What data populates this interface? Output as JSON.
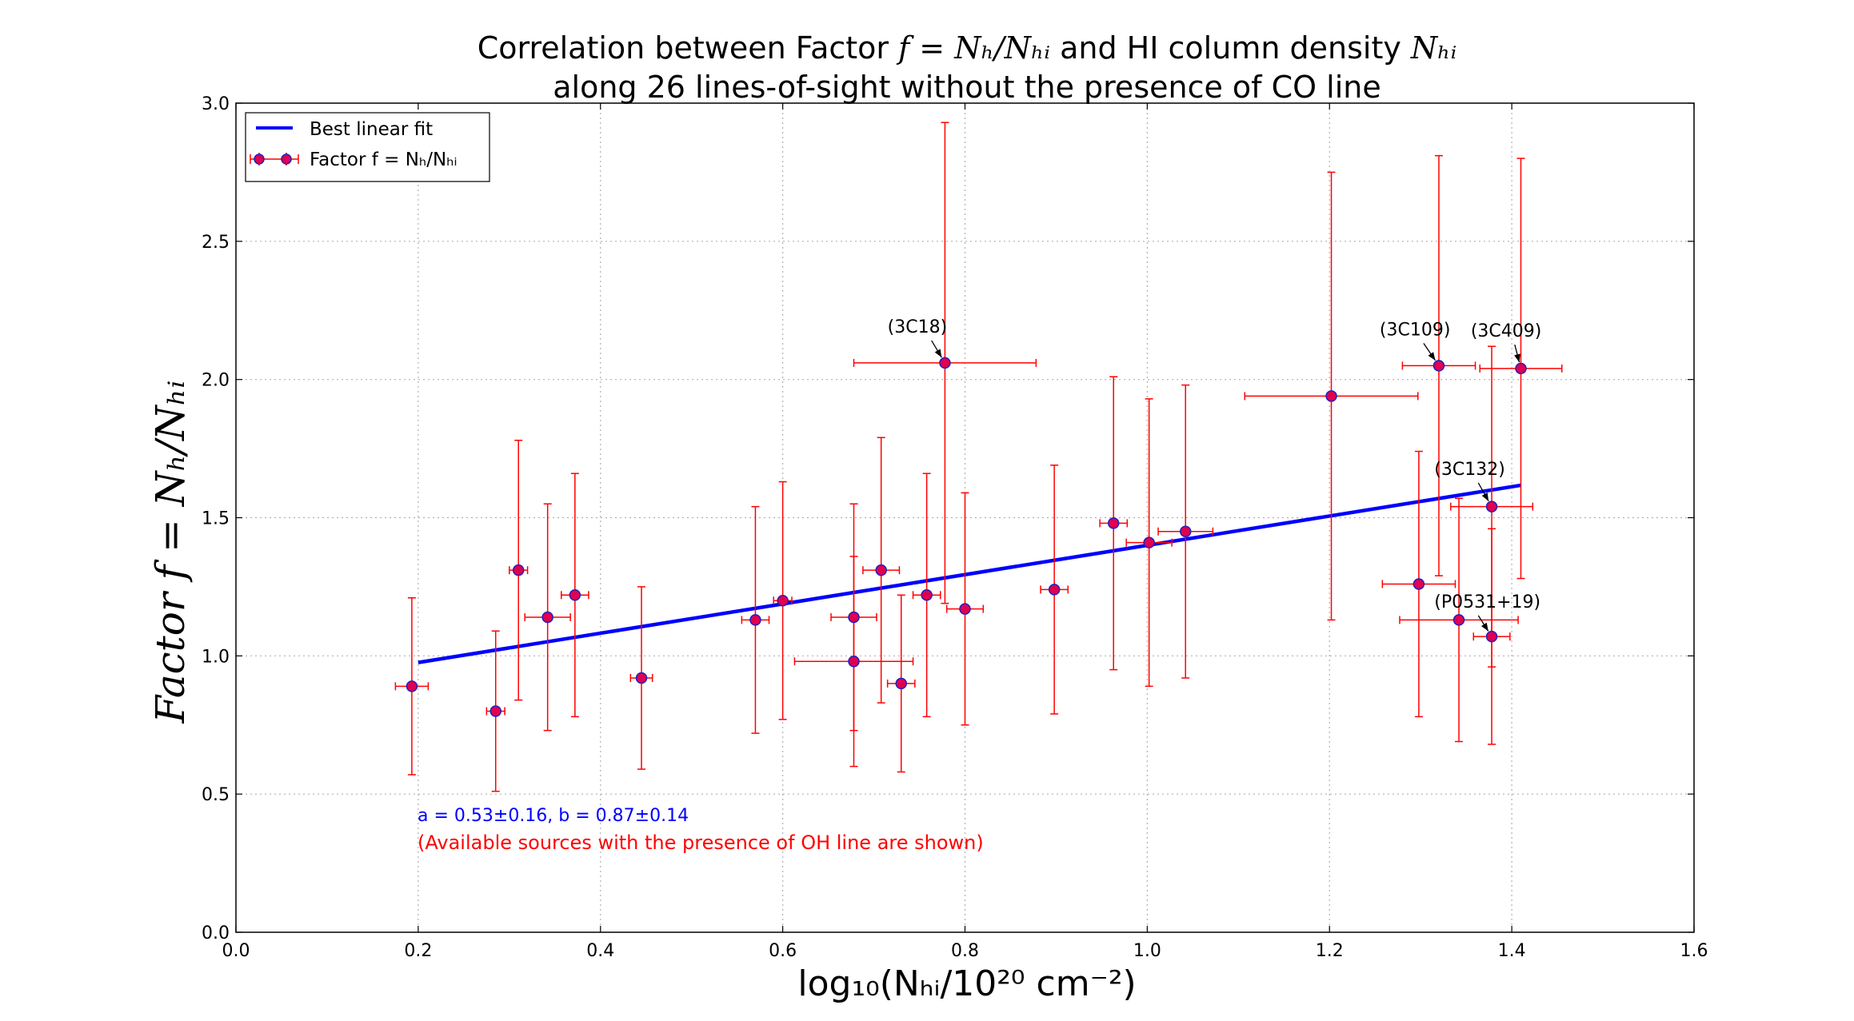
{
  "chart_data": {
    "type": "scatter",
    "title_line1_prefix": "Correlation between Factor ",
    "title_line1_math": "f = Nₕ/Nₕᵢ",
    "title_line1_mid": " and HI column density ",
    "title_line1_math2": "Nₕᵢ",
    "title_line2": "along 26 lines-of-sight without the presence of CO line",
    "xlabel": "log₁₀(Nₕᵢ/10²⁰ cm⁻²)",
    "ylabel": "Factor f = Nₕ/Nₕᵢ",
    "xlim": [
      0.0,
      1.6
    ],
    "ylim": [
      0.0,
      3.0
    ],
    "xticks": [
      "0.0",
      "0.2",
      "0.4",
      "0.6",
      "0.8",
      "1.0",
      "1.2",
      "1.4",
      "1.6"
    ],
    "yticks": [
      "0.0",
      "0.5",
      "1.0",
      "1.5",
      "2.0",
      "2.5",
      "3.0"
    ],
    "grid": true,
    "legend_position": "top-left",
    "legend": [
      {
        "label": "Best linear fit",
        "kind": "line",
        "color": "#0000ff"
      },
      {
        "label": "Factor f = Nₕ/Nₕᵢ",
        "kind": "errorbar",
        "color": "#ff0000",
        "marker_face": "#e0004f",
        "marker_edge": "#2020c0"
      }
    ],
    "fit": {
      "slope": 0.53,
      "intercept": 0.87,
      "x_range": [
        0.2,
        1.41
      ],
      "color": "#0000ff"
    },
    "fit_text": "a = 0.53±0.16,  b = 0.87±0.14",
    "note_text": "(Available sources with the presence of OH line are shown)",
    "series": [
      {
        "points": [
          {
            "x": 0.193,
            "y": 0.89,
            "xerr": 0.018,
            "yerr": 0.32
          },
          {
            "x": 0.285,
            "y": 0.8,
            "xerr": 0.01,
            "yerr": 0.29
          },
          {
            "x": 0.31,
            "y": 1.31,
            "xerr": 0.01,
            "yerr": 0.47
          },
          {
            "x": 0.342,
            "y": 1.14,
            "xerr": 0.025,
            "yerr": 0.41
          },
          {
            "x": 0.372,
            "y": 1.22,
            "xerr": 0.015,
            "yerr": 0.44
          },
          {
            "x": 0.445,
            "y": 0.92,
            "xerr": 0.012,
            "yerr": 0.33
          },
          {
            "x": 0.57,
            "y": 1.13,
            "xerr": 0.015,
            "yerr": 0.41
          },
          {
            "x": 0.6,
            "y": 1.2,
            "xerr": 0.01,
            "yerr": 0.43
          },
          {
            "x": 0.678,
            "y": 1.14,
            "xerr": 0.025,
            "yerr": 0.41
          },
          {
            "x": 0.678,
            "y": 0.98,
            "xerr": 0.065,
            "yerr": 0.38
          },
          {
            "x": 0.708,
            "y": 1.31,
            "xerr": 0.02,
            "yerr": 0.48
          },
          {
            "x": 0.73,
            "y": 0.9,
            "xerr": 0.015,
            "yerr": 0.32
          },
          {
            "x": 0.758,
            "y": 1.22,
            "xerr": 0.015,
            "yerr": 0.44
          },
          {
            "x": 0.778,
            "y": 2.06,
            "xerr": 0.1,
            "yerr": 0.87,
            "label": "(3C18)"
          },
          {
            "x": 0.8,
            "y": 1.17,
            "xerr": 0.02,
            "yerr": 0.42
          },
          {
            "x": 0.898,
            "y": 1.24,
            "xerr": 0.015,
            "yerr": 0.45
          },
          {
            "x": 0.963,
            "y": 1.48,
            "xerr": 0.015,
            "yerr": 0.53
          },
          {
            "x": 1.002,
            "y": 1.41,
            "xerr": 0.025,
            "yerr": 0.52
          },
          {
            "x": 1.042,
            "y": 1.45,
            "xerr": 0.03,
            "yerr": 0.53
          },
          {
            "x": 1.202,
            "y": 1.94,
            "xerr": 0.095,
            "yerr": 0.81
          },
          {
            "x": 1.298,
            "y": 1.26,
            "xerr": 0.04,
            "yerr": 0.48
          },
          {
            "x": 1.32,
            "y": 2.05,
            "xerr": 0.04,
            "yerr": 0.76,
            "label": "(3C109)"
          },
          {
            "x": 1.342,
            "y": 1.13,
            "xerr": 0.065,
            "yerr": 0.44
          },
          {
            "x": 1.378,
            "y": 1.54,
            "xerr": 0.045,
            "yerr": 0.58,
            "label": "(3C132)"
          },
          {
            "x": 1.378,
            "y": 1.07,
            "xerr": 0.02,
            "yerr": 0.39,
            "label": "(P0531+19)"
          },
          {
            "x": 1.41,
            "y": 2.04,
            "xerr": 0.045,
            "yerr": 0.76,
            "label": "(3C409)"
          }
        ]
      }
    ],
    "annotations": [
      {
        "text": "(3C18)",
        "target": [
          0.778,
          2.06
        ],
        "text_at": [
          0.715,
          2.17
        ]
      },
      {
        "text": "(3C109)",
        "target": [
          1.32,
          2.05
        ],
        "text_at": [
          1.255,
          2.16
        ]
      },
      {
        "text": "(3C409)",
        "target": [
          1.41,
          2.04
        ],
        "text_at": [
          1.355,
          2.155
        ]
      },
      {
        "text": "(3C132)",
        "target": [
          1.378,
          1.54
        ],
        "text_at": [
          1.315,
          1.655
        ]
      },
      {
        "text": "(P0531+19)",
        "target": [
          1.378,
          1.07
        ],
        "text_at": [
          1.315,
          1.175
        ]
      }
    ]
  }
}
